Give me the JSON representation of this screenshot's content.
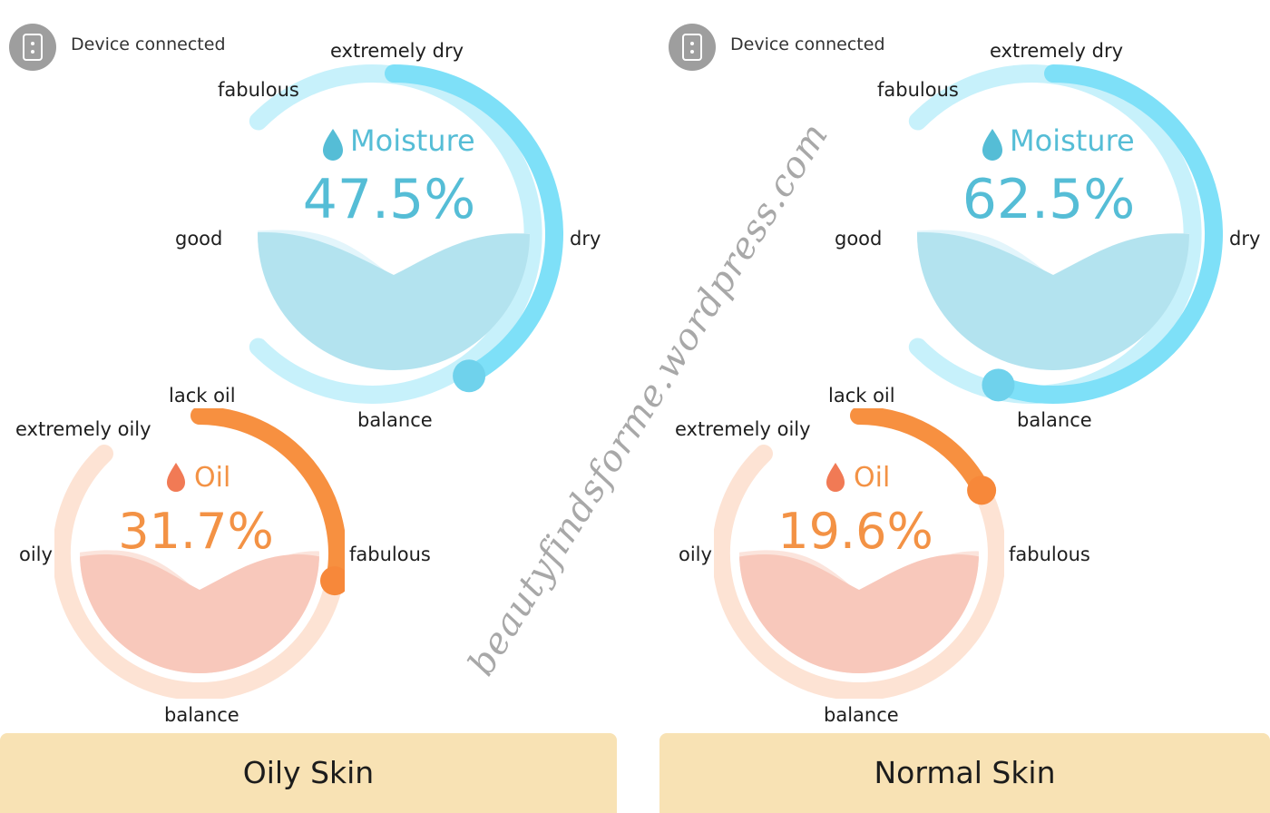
{
  "panels": [
    {
      "device_status": "Device connected",
      "moisture": {
        "title": "Moisture",
        "value_text": "47.5%",
        "value": 47.5,
        "labels": {
          "top": "extremely dry",
          "top_left": "fabulous",
          "left": "good",
          "right": "dry",
          "bottom": "balance"
        }
      },
      "oil": {
        "title": "Oil",
        "value_text": "31.7%",
        "value": 31.7,
        "labels": {
          "top": "lack oil",
          "top_left": "extremely oily",
          "left": "oily",
          "right": "fabulous",
          "bottom": "balance"
        }
      },
      "result": "Oily Skin"
    },
    {
      "device_status": "Device connected",
      "moisture": {
        "title": "Moisture",
        "value_text": "62.5%",
        "value": 62.5,
        "labels": {
          "top": "extremely dry",
          "top_left": "fabulous",
          "left": "good",
          "right": "dry",
          "bottom": "balance"
        }
      },
      "oil": {
        "title": "Oil",
        "value_text": "19.6%",
        "value": 19.6,
        "labels": {
          "top": "lack oil",
          "top_left": "extremely oily",
          "left": "oily",
          "right": "fabulous",
          "bottom": "balance"
        }
      },
      "result": "Normal Skin"
    }
  ],
  "watermark": "beautyfindsforme.wordpress.com",
  "colors": {
    "moisture_accent": "#7ee0f8",
    "moisture_track": "#c7f1fb",
    "moisture_text": "#55bdd6",
    "oil_accent": "#f79040",
    "oil_track": "#fde3d4",
    "oil_text": "#f39245",
    "result_bar": "#f8e2b4",
    "device_icon": "#9e9e9e"
  },
  "icons": {
    "device": "phone-device-icon",
    "moisture": "water-drop-icon",
    "oil": "oil-drop-icon"
  }
}
